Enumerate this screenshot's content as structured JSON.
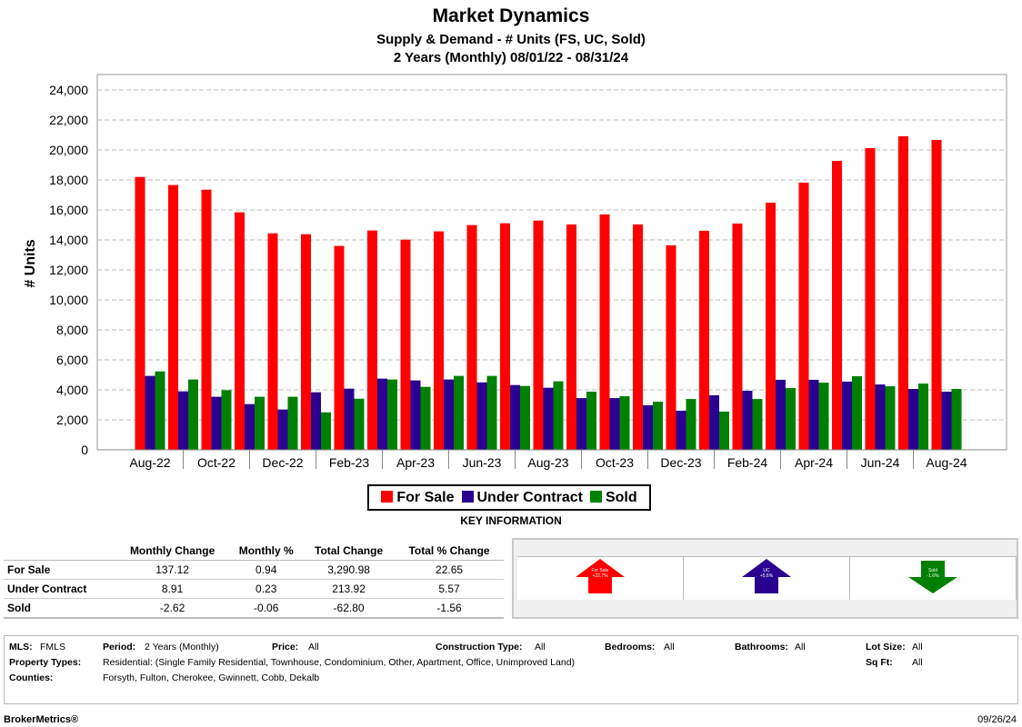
{
  "chart_data": {
    "type": "bar",
    "title": "Market Dynamics",
    "subtitle": [
      "Supply & Demand - # Units (FS, UC, Sold)",
      "2 Years (Monthly) 08/01/22 - 08/31/24"
    ],
    "xlabel": "",
    "ylabel": "# Units",
    "ylim": [
      0,
      24000
    ],
    "yticks": [
      "0",
      "2,000",
      "4,000",
      "6,000",
      "8,000",
      "10,000",
      "12,000",
      "14,000",
      "16,000",
      "18,000",
      "20,000",
      "22,000",
      "24,000"
    ],
    "ytick_values": [
      0,
      2000,
      4000,
      6000,
      8000,
      10000,
      12000,
      14000,
      16000,
      18000,
      20000,
      22000,
      24000
    ],
    "categories": [
      "Aug-22",
      "Sep-22",
      "Oct-22",
      "Nov-22",
      "Dec-22",
      "Jan-23",
      "Feb-23",
      "Mar-23",
      "Apr-23",
      "May-23",
      "Jun-23",
      "Jul-23",
      "Aug-23",
      "Sep-23",
      "Oct-23",
      "Nov-23",
      "Dec-23",
      "Jan-24",
      "Feb-24",
      "Mar-24",
      "Apr-24",
      "May-24",
      "Jun-24",
      "Jul-24",
      "Aug-24"
    ],
    "series": [
      {
        "name": "For Sale",
        "color": "#ff0000",
        "values": [
          18200,
          17660,
          17350,
          15840,
          14440,
          14380,
          13600,
          14630,
          14020,
          14570,
          14990,
          15110,
          15290,
          15030,
          15700,
          15030,
          13640,
          14610,
          15090,
          16480,
          17820,
          19270,
          20120,
          20910,
          20670
        ]
      },
      {
        "name": "Under Contract",
        "color": "#2a0090",
        "values": [
          4930,
          3900,
          3540,
          3050,
          2690,
          3840,
          4080,
          4750,
          4630,
          4690,
          4500,
          4320,
          4140,
          3450,
          3450,
          2970,
          2610,
          3640,
          3940,
          4670,
          4670,
          4550,
          4360,
          4060,
          3880
        ]
      },
      {
        "name": "Sold",
        "color": "#008000",
        "values": [
          5230,
          4690,
          3980,
          3540,
          3540,
          2500,
          3410,
          4690,
          4200,
          4930,
          4930,
          4260,
          4570,
          3880,
          3580,
          3210,
          3390,
          2550,
          3390,
          4120,
          4480,
          4910,
          4240,
          4420,
          4060
        ]
      }
    ],
    "grid": true,
    "legend": "bottom-center"
  },
  "key_information": "KEY INFORMATION",
  "stats": {
    "headers": [
      "Monthly Change",
      "Monthly %",
      "Total Change",
      "Total % Change"
    ],
    "rows": [
      {
        "label": "For Sale",
        "values": [
          "137.12",
          "0.94",
          "3,290.98",
          "22.65"
        ]
      },
      {
        "label": "Under Contract",
        "values": [
          "8.91",
          "0.23",
          "213.92",
          "5.57"
        ]
      },
      {
        "label": "Sold",
        "values": [
          "-2.62",
          "-0.06",
          "-62.80",
          "-1.56"
        ]
      }
    ]
  },
  "arrows": [
    {
      "label": "For Sale",
      "value": "+22.7%",
      "direction": "up",
      "color": "#ff0000"
    },
    {
      "label": "UC",
      "value": "+5.6%",
      "direction": "up",
      "color": "#2a0090"
    },
    {
      "label": "Sold",
      "value": "-1.6%",
      "direction": "down",
      "color": "#008000"
    }
  ],
  "filters": {
    "mls_label": "MLS:",
    "mls": "FMLS",
    "period_label": "Period:",
    "period": "2 Years (Monthly)",
    "price_label": "Price:",
    "price": "All",
    "construction_label": "Construction Type:",
    "construction": "All",
    "bedrooms_label": "Bedrooms:",
    "bedrooms": "All",
    "bathrooms_label": "Bathrooms:",
    "bathrooms": "All",
    "lot_label": "Lot Size:",
    "lot": "All",
    "ptypes_label": "Property Types:",
    "ptypes": "Residential: (Single Family Residential, Townhouse, Condominium, Other, Apartment, Office, Unimproved Land)",
    "sqft_label": "Sq Ft:",
    "sqft": "All",
    "counties_label": "Counties:",
    "counties": "Forsyth, Fulton, Cherokee, Gwinnett, Cobb, Dekalb"
  },
  "footer": {
    "brand": "BrokerMetrics®",
    "date": "09/26/24"
  }
}
